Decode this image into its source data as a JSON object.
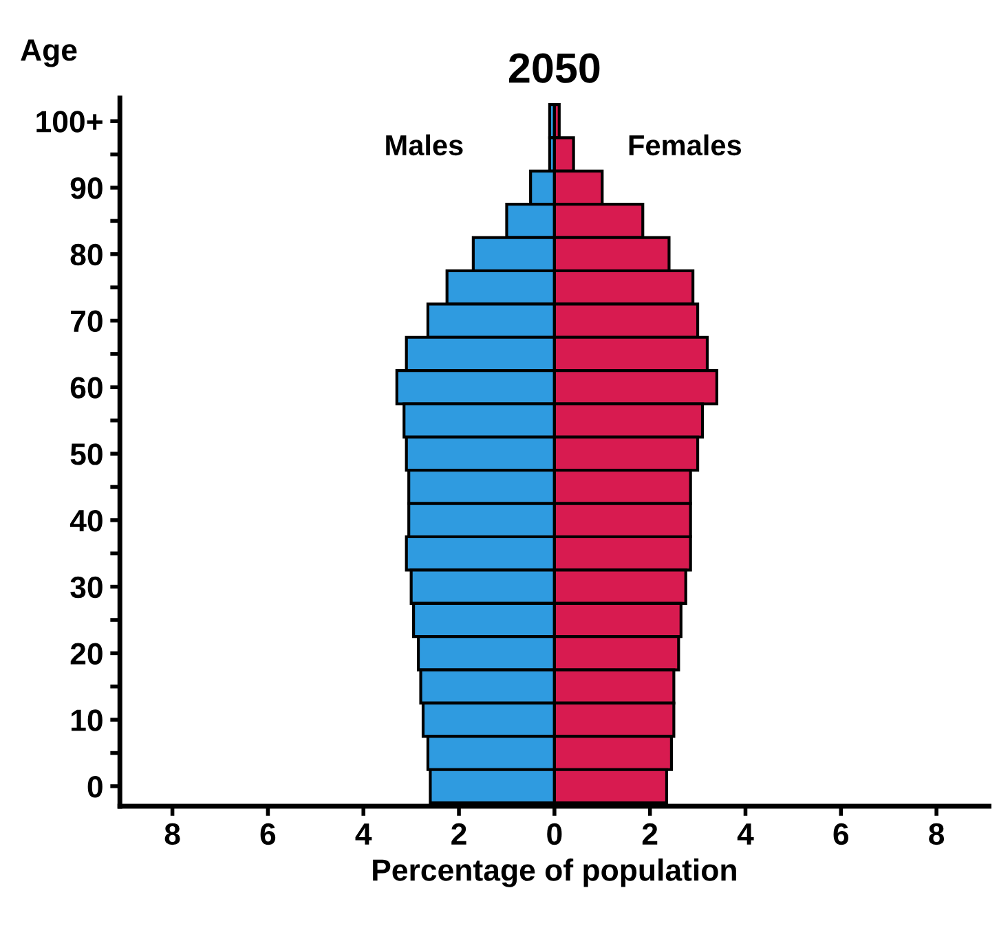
{
  "chart_data": {
    "type": "bar",
    "orientation": "horizontal",
    "title": "2050",
    "ylabel": "Age",
    "xlabel": "Percentage of population",
    "categories": [
      "100+",
      null,
      "90",
      null,
      "80",
      null,
      "70",
      null,
      "60",
      null,
      "50",
      null,
      "40",
      null,
      "30",
      null,
      "20",
      null,
      "10",
      null,
      "0"
    ],
    "series": [
      {
        "name": "Males",
        "color": "#2f9be0",
        "values": [
          -0.1,
          -0.1,
          -0.5,
          -1.0,
          -1.7,
          -2.25,
          -2.65,
          -3.1,
          -3.3,
          -3.15,
          -3.1,
          -3.05,
          -3.05,
          -3.1,
          -3.0,
          -2.95,
          -2.85,
          -2.8,
          -2.75,
          -2.65,
          -2.6
        ]
      },
      {
        "name": "Females",
        "color": "#d81b50",
        "values": [
          0.1,
          0.4,
          1.0,
          1.85,
          2.4,
          2.9,
          3.0,
          3.2,
          3.4,
          3.1,
          3.0,
          2.85,
          2.85,
          2.85,
          2.75,
          2.65,
          2.6,
          2.5,
          2.5,
          2.45,
          2.35
        ]
      }
    ],
    "xlim": [
      -9.1,
      9.1
    ],
    "xticks": [
      {
        "value": -8,
        "label": "8"
      },
      {
        "value": -6,
        "label": "6"
      },
      {
        "value": -4,
        "label": "4"
      },
      {
        "value": -2,
        "label": "2"
      },
      0,
      2,
      4,
      6,
      8
    ],
    "stacked": true,
    "grid": false,
    "legend": false
  }
}
